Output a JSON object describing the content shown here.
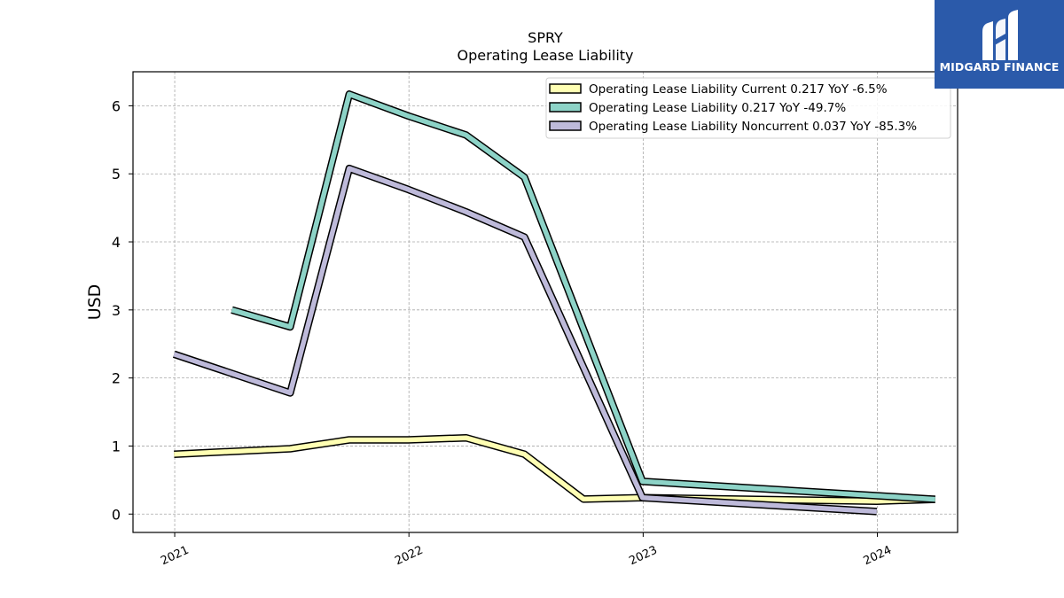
{
  "chart_data": {
    "type": "line",
    "title": "SPRY",
    "subtitle": "Operating Lease Liability",
    "ylabel": "USD",
    "xlabel": "",
    "ylim": [
      -0.27,
      6.5
    ],
    "xlim": [
      "2020-10-28",
      "2024-05-05"
    ],
    "yticks": [
      0,
      1,
      2,
      3,
      4,
      5,
      6
    ],
    "xticks": [
      "2021",
      "2022",
      "2023",
      "2024"
    ],
    "grid": true,
    "legend_position": "top-right",
    "series": [
      {
        "name": "Operating Lease Liability Current  0.217 YoY -6.5%",
        "color": "#ffffb3",
        "points": [
          [
            "2020-12-31",
            0.88
          ],
          [
            "2021-06-30",
            0.96
          ],
          [
            "2021-09-30",
            1.09
          ],
          [
            "2021-12-31",
            1.09
          ],
          [
            "2022-03-31",
            1.12
          ],
          [
            "2022-06-30",
            0.88
          ],
          [
            "2022-09-30",
            0.22
          ],
          [
            "2022-12-31",
            0.24
          ],
          [
            "2023-12-31",
            0.19
          ],
          [
            "2024-03-31",
            0.217
          ]
        ]
      },
      {
        "name": "Operating Lease Liability  0.217 YoY -49.7%",
        "color": "#8dd3c7",
        "points": [
          [
            "2021-03-31",
            3.0
          ],
          [
            "2021-06-30",
            2.75
          ],
          [
            "2021-09-30",
            6.17
          ],
          [
            "2021-12-31",
            5.85
          ],
          [
            "2022-03-31",
            5.57
          ],
          [
            "2022-06-30",
            4.95
          ],
          [
            "2022-12-31",
            0.48
          ],
          [
            "2024-03-31",
            0.217
          ]
        ]
      },
      {
        "name": "Operating Lease Liability Noncurrent  0.037 YoY -85.3%",
        "color": "#bebada",
        "points": [
          [
            "2020-12-31",
            2.35
          ],
          [
            "2021-06-30",
            1.78
          ],
          [
            "2021-09-30",
            5.08
          ],
          [
            "2021-12-31",
            4.77
          ],
          [
            "2022-03-31",
            4.44
          ],
          [
            "2022-06-30",
            4.07
          ],
          [
            "2022-12-31",
            0.24
          ],
          [
            "2023-12-31",
            0.037
          ]
        ]
      }
    ]
  },
  "logo": {
    "text": "MIDGARD FINANCE",
    "background": "#2b5aaa"
  }
}
